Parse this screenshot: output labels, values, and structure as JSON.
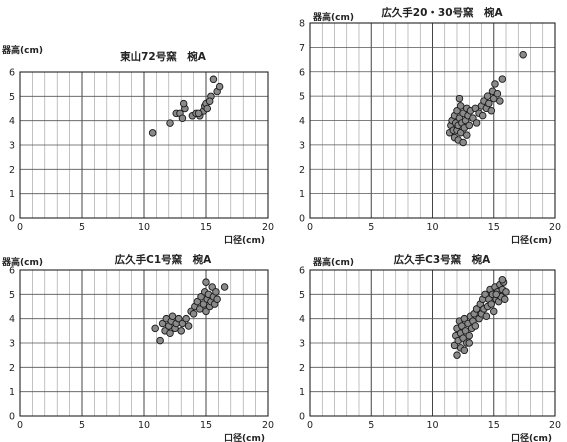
{
  "chart_data": [
    {
      "type": "scatter",
      "title": "東山72号窯　椀A",
      "ylabel": "器高(cm)",
      "xlabel": "口径(cm)",
      "xlim": [
        0,
        20
      ],
      "ylim": [
        0,
        6
      ],
      "xticks": [
        0,
        5,
        10,
        15,
        20
      ],
      "yticks": [
        0,
        1,
        2,
        3,
        4,
        5,
        6
      ],
      "grid": true,
      "points": [
        [
          10.7,
          3.5
        ],
        [
          12.1,
          3.9
        ],
        [
          12.6,
          4.3
        ],
        [
          12.9,
          4.3
        ],
        [
          13.1,
          4.1
        ],
        [
          13.3,
          4.5
        ],
        [
          13.2,
          4.7
        ],
        [
          13.9,
          4.2
        ],
        [
          14.2,
          4.3
        ],
        [
          14.5,
          4.2
        ],
        [
          14.8,
          4.4
        ],
        [
          14.9,
          4.6
        ],
        [
          15.0,
          4.7
        ],
        [
          15.1,
          4.5
        ],
        [
          15.4,
          5.0
        ],
        [
          15.6,
          5.7
        ],
        [
          15.9,
          5.2
        ],
        [
          16.1,
          5.4
        ],
        [
          14.4,
          4.3
        ],
        [
          15.3,
          4.8
        ]
      ]
    },
    {
      "type": "scatter",
      "title": "広久手20・30号窯　椀A",
      "ylabel": "器高(cm)",
      "xlabel": "口径(cm)",
      "xlim": [
        0,
        20
      ],
      "ylim": [
        0,
        8
      ],
      "xticks": [
        0,
        5,
        10,
        15,
        20
      ],
      "yticks": [
        0,
        1,
        2,
        3,
        4,
        5,
        6,
        7,
        8
      ],
      "grid": true,
      "points": [
        [
          11.4,
          3.5
        ],
        [
          11.5,
          3.8
        ],
        [
          11.6,
          4.0
        ],
        [
          11.7,
          3.6
        ],
        [
          11.8,
          3.3
        ],
        [
          11.8,
          4.2
        ],
        [
          11.9,
          3.9
        ],
        [
          12.0,
          3.6
        ],
        [
          12.0,
          4.4
        ],
        [
          12.1,
          3.2
        ],
        [
          12.1,
          3.8
        ],
        [
          12.2,
          4.1
        ],
        [
          12.3,
          3.5
        ],
        [
          12.3,
          4.6
        ],
        [
          12.4,
          3.9
        ],
        [
          12.5,
          3.1
        ],
        [
          12.5,
          4.3
        ],
        [
          12.6,
          3.7
        ],
        [
          12.7,
          4.0
        ],
        [
          12.8,
          3.4
        ],
        [
          12.8,
          4.5
        ],
        [
          12.2,
          4.9
        ],
        [
          12.9,
          4.2
        ],
        [
          13.0,
          3.8
        ],
        [
          13.1,
          4.4
        ],
        [
          13.3,
          4.1
        ],
        [
          13.5,
          4.5
        ],
        [
          13.6,
          3.9
        ],
        [
          13.8,
          4.3
        ],
        [
          14.0,
          4.6
        ],
        [
          14.1,
          4.2
        ],
        [
          14.2,
          4.8
        ],
        [
          14.4,
          4.5
        ],
        [
          14.5,
          5.0
        ],
        [
          14.6,
          4.7
        ],
        [
          14.8,
          4.4
        ],
        [
          14.9,
          5.2
        ],
        [
          15.0,
          4.9
        ],
        [
          15.1,
          5.5
        ],
        [
          15.3,
          5.1
        ],
        [
          15.5,
          4.8
        ],
        [
          15.7,
          5.7
        ],
        [
          17.4,
          6.7
        ]
      ]
    },
    {
      "type": "scatter",
      "title": "広久手C1号窯　椀A",
      "ylabel": "器高(cm)",
      "xlabel": "口径(cm)",
      "xlim": [
        0,
        20
      ],
      "ylim": [
        0,
        6
      ],
      "xticks": [
        0,
        5,
        10,
        15,
        20
      ],
      "yticks": [
        0,
        1,
        2,
        3,
        4,
        5,
        6
      ],
      "grid": true,
      "points": [
        [
          10.9,
          3.6
        ],
        [
          11.3,
          3.1
        ],
        [
          11.5,
          3.8
        ],
        [
          11.7,
          3.5
        ],
        [
          11.8,
          4.0
        ],
        [
          12.0,
          3.7
        ],
        [
          12.1,
          3.4
        ],
        [
          12.2,
          3.9
        ],
        [
          12.3,
          4.1
        ],
        [
          12.5,
          3.6
        ],
        [
          12.6,
          3.8
        ],
        [
          12.8,
          4.0
        ],
        [
          13.0,
          3.5
        ],
        [
          13.1,
          3.8
        ],
        [
          13.4,
          4.0
        ],
        [
          13.6,
          3.7
        ],
        [
          13.8,
          4.3
        ],
        [
          14.1,
          4.5
        ],
        [
          14.3,
          4.7
        ],
        [
          14.5,
          4.4
        ],
        [
          14.6,
          4.9
        ],
        [
          14.8,
          4.6
        ],
        [
          14.9,
          5.1
        ],
        [
          15.0,
          4.3
        ],
        [
          15.1,
          4.8
        ],
        [
          15.2,
          5.0
        ],
        [
          15.3,
          4.5
        ],
        [
          15.4,
          4.7
        ],
        [
          15.5,
          5.3
        ],
        [
          15.6,
          4.9
        ],
        [
          15.7,
          4.6
        ],
        [
          15.8,
          5.1
        ],
        [
          15.9,
          4.8
        ],
        [
          16.5,
          5.3
        ],
        [
          14.0,
          4.2
        ],
        [
          15.0,
          5.5
        ]
      ]
    },
    {
      "type": "scatter",
      "title": "広久手C3号窯　椀A",
      "ylabel": "器高(cm)",
      "xlabel": "口径(cm)",
      "xlim": [
        0,
        20
      ],
      "ylim": [
        0,
        6
      ],
      "xticks": [
        0,
        5,
        10,
        15,
        20
      ],
      "yticks": [
        0,
        1,
        2,
        3,
        4,
        5,
        6
      ],
      "grid": true,
      "points": [
        [
          11.8,
          2.9
        ],
        [
          11.9,
          3.3
        ],
        [
          12.0,
          3.6
        ],
        [
          12.0,
          2.5
        ],
        [
          12.1,
          3.1
        ],
        [
          12.2,
          3.9
        ],
        [
          12.3,
          3.4
        ],
        [
          12.3,
          2.8
        ],
        [
          12.4,
          3.7
        ],
        [
          12.5,
          3.2
        ],
        [
          12.6,
          4.0
        ],
        [
          12.7,
          3.5
        ],
        [
          12.8,
          3.0
        ],
        [
          12.9,
          3.8
        ],
        [
          13.0,
          3.3
        ],
        [
          13.1,
          4.1
        ],
        [
          13.2,
          3.6
        ],
        [
          13.3,
          3.9
        ],
        [
          13.4,
          4.2
        ],
        [
          13.5,
          3.7
        ],
        [
          13.6,
          4.4
        ],
        [
          13.8,
          4.0
        ],
        [
          13.9,
          4.6
        ],
        [
          14.0,
          4.2
        ],
        [
          14.1,
          4.8
        ],
        [
          14.2,
          4.4
        ],
        [
          14.3,
          5.0
        ],
        [
          14.5,
          4.5
        ],
        [
          14.6,
          4.8
        ],
        [
          14.7,
          5.2
        ],
        [
          14.8,
          4.6
        ],
        [
          14.9,
          5.0
        ],
        [
          15.0,
          4.3
        ],
        [
          15.1,
          5.3
        ],
        [
          15.2,
          4.8
        ],
        [
          15.3,
          5.1
        ],
        [
          15.4,
          4.7
        ],
        [
          15.5,
          5.4
        ],
        [
          15.6,
          4.9
        ],
        [
          15.7,
          5.2
        ],
        [
          15.8,
          5.5
        ],
        [
          15.9,
          4.8
        ],
        [
          16.0,
          5.1
        ],
        [
          15.7,
          5.6
        ],
        [
          14.4,
          4.1
        ],
        [
          13.0,
          3.0
        ],
        [
          12.6,
          2.7
        ],
        [
          15.2,
          5.0
        ]
      ]
    }
  ]
}
